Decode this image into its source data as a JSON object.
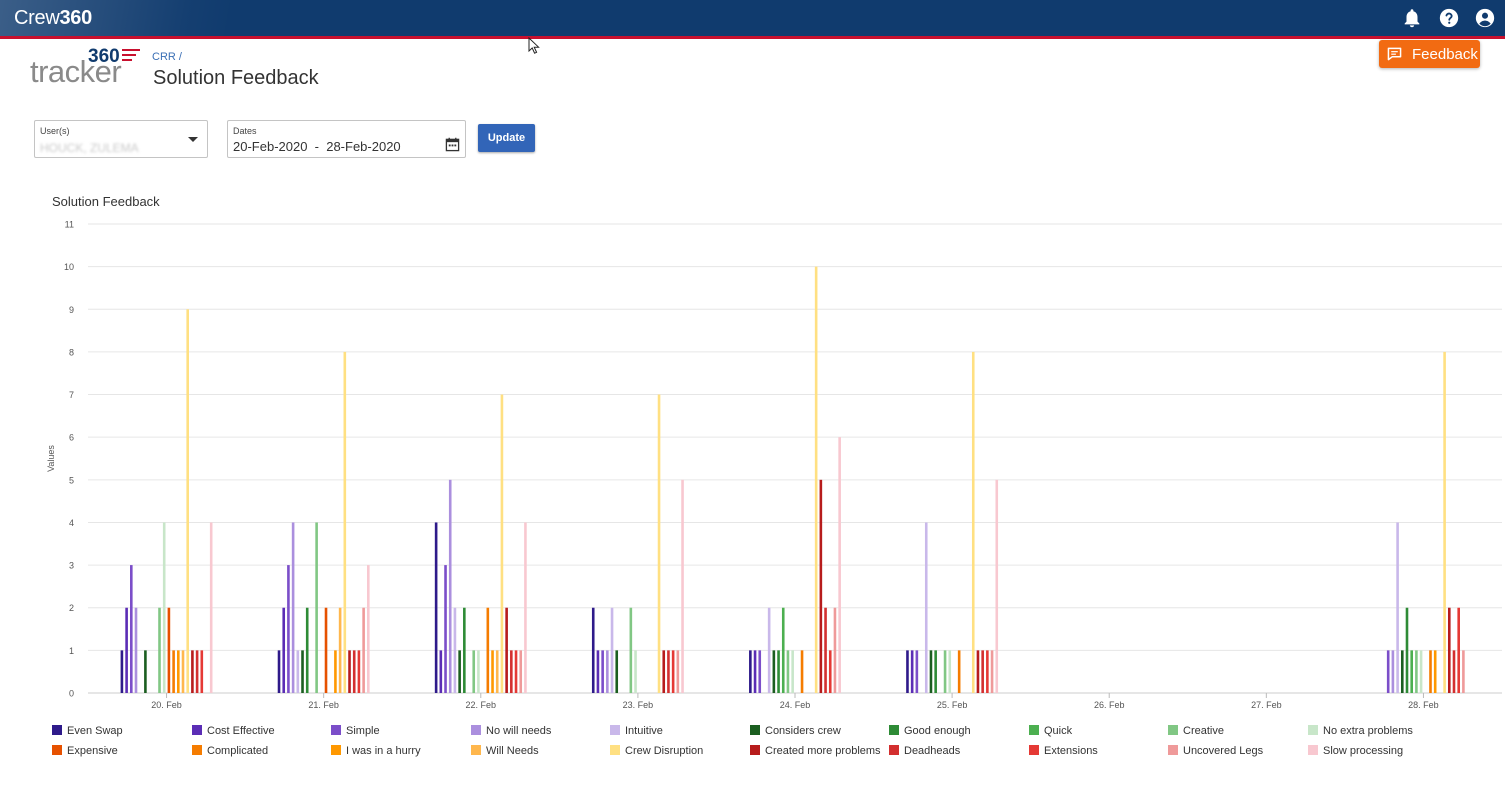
{
  "header": {
    "brand_light": "Crew",
    "brand_bold": "360",
    "icons": [
      "bell-icon",
      "help-icon",
      "account-icon"
    ]
  },
  "logo": {
    "number": "360",
    "word": "tracker"
  },
  "breadcrumb": "CRR /",
  "page_title": "Solution Feedback",
  "feedback_button": {
    "label": "Feedback",
    "icon": "feedback-icon",
    "color": "#f26b12"
  },
  "filters": {
    "users": {
      "label": "User(s)",
      "value": "HOUCK, ZULEMA"
    },
    "dates": {
      "label": "Dates",
      "value": "20-Feb-2020  -  28-Feb-2020"
    },
    "update_label": "Update"
  },
  "chart_data": {
    "type": "bar",
    "title": "Solution Feedback",
    "xlabel": "",
    "ylabel": "Values",
    "ylim": [
      0,
      11
    ],
    "y_ticks": [
      0,
      1,
      2,
      3,
      4,
      5,
      6,
      7,
      8,
      9,
      10,
      11
    ],
    "grid": true,
    "legend_position": "bottom",
    "categories": [
      "20. Feb",
      "21. Feb",
      "22. Feb",
      "23. Feb",
      "24. Feb",
      "25. Feb",
      "26. Feb",
      "27. Feb",
      "28. Feb"
    ],
    "series": [
      {
        "name": "Even Swap",
        "color": "#2e1a8a",
        "values": [
          1,
          1,
          4,
          2,
          1,
          1,
          0,
          0,
          0
        ]
      },
      {
        "name": "Cost Effective",
        "color": "#5b2db5",
        "values": [
          2,
          2,
          1,
          1,
          1,
          1,
          0,
          0,
          0
        ]
      },
      {
        "name": "Simple",
        "color": "#7b4ec9",
        "values": [
          3,
          3,
          3,
          1,
          1,
          1,
          0,
          0,
          1
        ]
      },
      {
        "name": "No will needs",
        "color": "#ab8fde",
        "values": [
          2,
          4,
          5,
          1,
          0,
          0,
          0,
          0,
          1
        ]
      },
      {
        "name": "Intuitive",
        "color": "#c9b8ea",
        "values": [
          0,
          1,
          2,
          2,
          2,
          4,
          0,
          0,
          4
        ]
      },
      {
        "name": "Considers crew",
        "color": "#1b5e20",
        "values": [
          1,
          1,
          1,
          1,
          1,
          1,
          0,
          0,
          1
        ]
      },
      {
        "name": "Good enough",
        "color": "#2e8b36",
        "values": [
          0,
          2,
          2,
          0,
          1,
          1,
          0,
          0,
          2
        ]
      },
      {
        "name": "Quick",
        "color": "#4caf50",
        "values": [
          0,
          0,
          0,
          0,
          2,
          0,
          0,
          0,
          1
        ]
      },
      {
        "name": "Creative",
        "color": "#81c784",
        "values": [
          2,
          4,
          1,
          2,
          1,
          1,
          0,
          0,
          1
        ]
      },
      {
        "name": "No extra problems",
        "color": "#c8e6c9",
        "values": [
          4,
          0,
          1,
          1,
          1,
          1,
          0,
          0,
          1
        ]
      },
      {
        "name": "Expensive",
        "color": "#e65100",
        "values": [
          2,
          2,
          0,
          0,
          0,
          0,
          0,
          0,
          0
        ]
      },
      {
        "name": "Complicated",
        "color": "#f57c00",
        "values": [
          1,
          0,
          2,
          0,
          1,
          1,
          0,
          0,
          1
        ]
      },
      {
        "name": "I was in a hurry",
        "color": "#ff9800",
        "values": [
          1,
          1,
          1,
          0,
          0,
          0,
          0,
          0,
          1
        ]
      },
      {
        "name": "Will Needs",
        "color": "#ffb74d",
        "values": [
          1,
          2,
          1,
          0,
          0,
          0,
          0,
          0,
          0
        ]
      },
      {
        "name": "Crew Disruption",
        "color": "#ffe082",
        "values": [
          9,
          8,
          7,
          7,
          10,
          8,
          0,
          0,
          8
        ]
      },
      {
        "name": "Created more problems",
        "color": "#b71c1c",
        "values": [
          1,
          1,
          2,
          1,
          5,
          1,
          0,
          0,
          2
        ]
      },
      {
        "name": "Deadheads",
        "color": "#d32f2f",
        "values": [
          1,
          1,
          1,
          1,
          2,
          1,
          0,
          0,
          1
        ]
      },
      {
        "name": "Extensions",
        "color": "#e53935",
        "values": [
          1,
          1,
          1,
          1,
          1,
          1,
          0,
          0,
          2
        ]
      },
      {
        "name": "Uncovered Legs",
        "color": "#ef9a9a",
        "values": [
          0,
          2,
          1,
          1,
          2,
          1,
          0,
          0,
          1
        ]
      },
      {
        "name": "Slow processing",
        "color": "#f8c8d0",
        "values": [
          4,
          3,
          4,
          5,
          6,
          5,
          0,
          0,
          0
        ]
      }
    ]
  }
}
